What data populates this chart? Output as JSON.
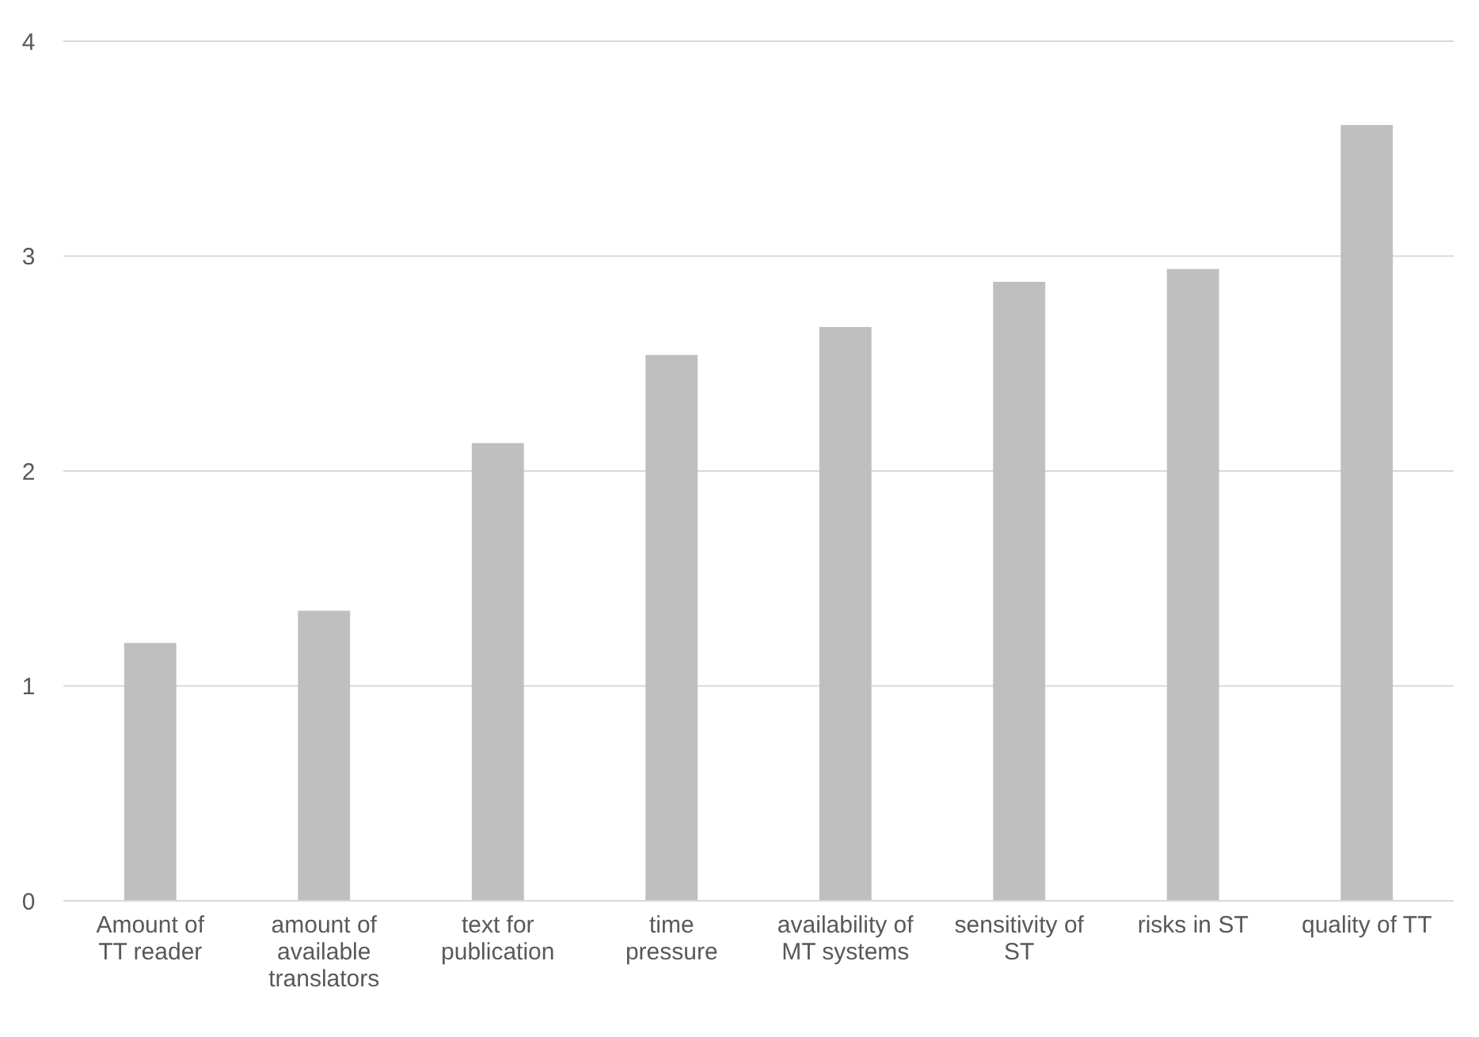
{
  "chart_data": {
    "type": "bar",
    "categories": [
      "Amount of TT reader",
      "amount of available translators",
      "text for publication",
      "time pressure",
      "availability of MT systems",
      "sensitivity of ST",
      "risks in ST",
      "quality of TT"
    ],
    "values": [
      1.2,
      1.35,
      2.13,
      2.54,
      2.67,
      2.88,
      2.94,
      3.61
    ],
    "color": "#bfbfbf",
    "ylim": [
      0,
      4
    ],
    "yticks": [
      0,
      1,
      2,
      3,
      4
    ],
    "grid": "y"
  }
}
